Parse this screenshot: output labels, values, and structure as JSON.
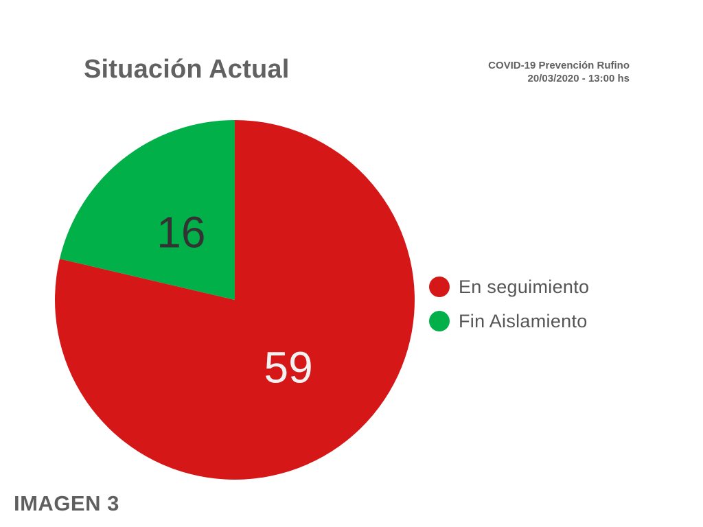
{
  "chart_data": {
    "type": "pie",
    "title": "Situación Actual",
    "subtitle_lines": [
      "COVID-19 Prevención Rufino",
      "20/03/2020 - 13:00 hs"
    ],
    "series": [
      {
        "name": "En seguimiento",
        "value": 59,
        "color": "#d51717",
        "label_color": "#f2f2f2"
      },
      {
        "name": "Fin Aislamiento",
        "value": 16,
        "color": "#02b049",
        "label_color": "#333333"
      }
    ],
    "legend_position": "right"
  },
  "footer": {
    "label": "IMAGEN 3"
  }
}
